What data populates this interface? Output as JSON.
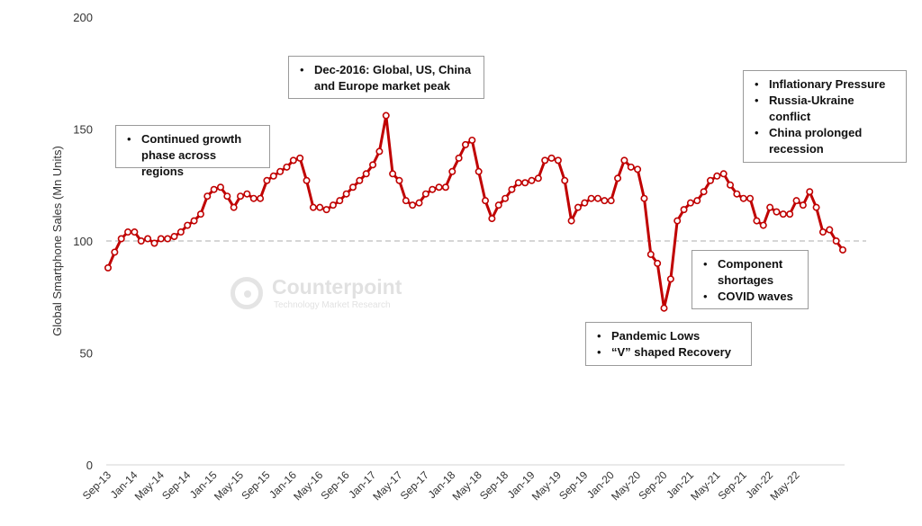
{
  "chart_data": {
    "type": "line",
    "ylabel": "Global Smartphone Sales (Mn Units)",
    "ylim": [
      0,
      200
    ],
    "yticks": [
      "0",
      "50",
      "100",
      "150",
      "200"
    ],
    "reference_line": 100,
    "x_tick_labels": [
      "Sep-13",
      "Jan-14",
      "May-14",
      "Sep-14",
      "Jan-15",
      "May-15",
      "Sep-15",
      "Jan-16",
      "May-16",
      "Sep-16",
      "Jan-17",
      "May-17",
      "Sep-17",
      "Jan-18",
      "May-18",
      "Sep-18",
      "Jan-19",
      "May-19",
      "Sep-19",
      "Jan-20",
      "May-20",
      "Sep-20",
      "Jan-21",
      "May-21",
      "Sep-21",
      "Jan-22",
      "May-22"
    ],
    "series": [
      {
        "color": "#c00000",
        "start": "Sep-13",
        "values": [
          88,
          95,
          101,
          104,
          104,
          100,
          101,
          99,
          101,
          101,
          102,
          104,
          107,
          109,
          112,
          120,
          123,
          124,
          120,
          115,
          120,
          121,
          119,
          119,
          127,
          129,
          131,
          133,
          136,
          137,
          127,
          115,
          115,
          114,
          116,
          118,
          121,
          124,
          127,
          130,
          134,
          140,
          156,
          130,
          127,
          118,
          116,
          117,
          121,
          123,
          124,
          124,
          131,
          137,
          143,
          145,
          131,
          118,
          110,
          116,
          119,
          123,
          126,
          126,
          127,
          128,
          136,
          137,
          136,
          127,
          109,
          115,
          117,
          119,
          119,
          118,
          118,
          128,
          136,
          133,
          132,
          119,
          94,
          90,
          70,
          83,
          109,
          114,
          117,
          118,
          122,
          127,
          129,
          130,
          125,
          121,
          119,
          119,
          109,
          107,
          115,
          113,
          112,
          112,
          118,
          116,
          122,
          115,
          104,
          105,
          100,
          96
        ]
      }
    ],
    "annotations": [
      {
        "id": "growth",
        "items": [
          "Continued growth phase across regions"
        ]
      },
      {
        "id": "peak",
        "items": [
          "Dec-2016: Global, US, China and Europe market peak"
        ]
      },
      {
        "id": "inflation",
        "items": [
          "Inflationary Pressure",
          "Russia-Ukraine conflict",
          "China prolonged recession"
        ]
      },
      {
        "id": "shortage",
        "items": [
          "Component shortages",
          "COVID waves"
        ]
      },
      {
        "id": "pandemic",
        "items": [
          "Pandemic Lows",
          "“V” shaped Recovery"
        ]
      }
    ]
  },
  "watermark": {
    "name": "Counterpoint",
    "subtitle": "Technology Market Research"
  }
}
